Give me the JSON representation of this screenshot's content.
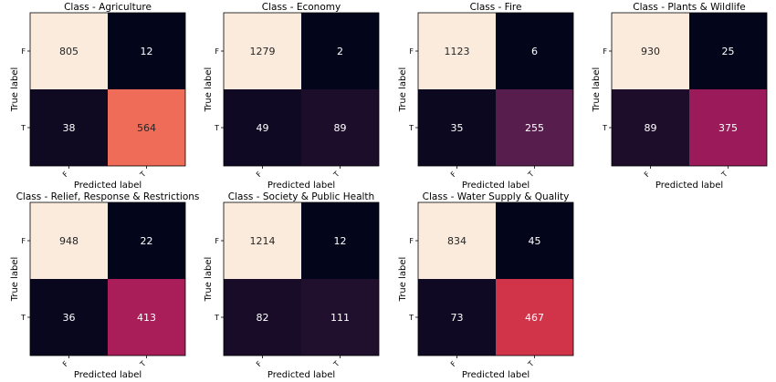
{
  "chart_data": [
    {
      "type": "heatmap",
      "title": "Class - Agriculture",
      "xlabel": "Predicted label",
      "ylabel": "True label",
      "x_categories": [
        "F",
        "T"
      ],
      "y_categories": [
        "F",
        "T"
      ],
      "values": [
        [
          805,
          12
        ],
        [
          38,
          564
        ]
      ]
    },
    {
      "type": "heatmap",
      "title": "Class - Economy",
      "xlabel": "Predicted label",
      "ylabel": "True label",
      "x_categories": [
        "F",
        "T"
      ],
      "y_categories": [
        "F",
        "T"
      ],
      "values": [
        [
          1279,
          2
        ],
        [
          49,
          89
        ]
      ]
    },
    {
      "type": "heatmap",
      "title": "Class - Fire",
      "xlabel": "Predicted label",
      "ylabel": "True label",
      "x_categories": [
        "F",
        "T"
      ],
      "y_categories": [
        "F",
        "T"
      ],
      "values": [
        [
          1123,
          6
        ],
        [
          35,
          255
        ]
      ]
    },
    {
      "type": "heatmap",
      "title": "Class - Plants & Wildlife",
      "xlabel": "Predicted label",
      "ylabel": "True label",
      "x_categories": [
        "F",
        "T"
      ],
      "y_categories": [
        "F",
        "T"
      ],
      "values": [
        [
          930,
          25
        ],
        [
          89,
          375
        ]
      ]
    },
    {
      "type": "heatmap",
      "title": "Class - Relief, Response & Restrictions",
      "xlabel": "Predicted label",
      "ylabel": "True label",
      "x_categories": [
        "F",
        "T"
      ],
      "y_categories": [
        "F",
        "T"
      ],
      "values": [
        [
          948,
          22
        ],
        [
          36,
          413
        ]
      ]
    },
    {
      "type": "heatmap",
      "title": "Class - Society & Public Health",
      "xlabel": "Predicted label",
      "ylabel": "True label",
      "x_categories": [
        "F",
        "T"
      ],
      "y_categories": [
        "F",
        "T"
      ],
      "values": [
        [
          1214,
          12
        ],
        [
          82,
          111
        ]
      ]
    },
    {
      "type": "heatmap",
      "title": "Class - Water Supply & Quality",
      "xlabel": "Predicted label",
      "ylabel": "True label",
      "x_categories": [
        "F",
        "T"
      ],
      "y_categories": [
        "F",
        "T"
      ],
      "values": [
        [
          834,
          45
        ],
        [
          73,
          467
        ]
      ]
    }
  ],
  "colormap": [
    "#03051a",
    "#4c1d4b",
    "#a11a5b",
    "#e83f3f",
    "#f69c73",
    "#faebdd"
  ]
}
